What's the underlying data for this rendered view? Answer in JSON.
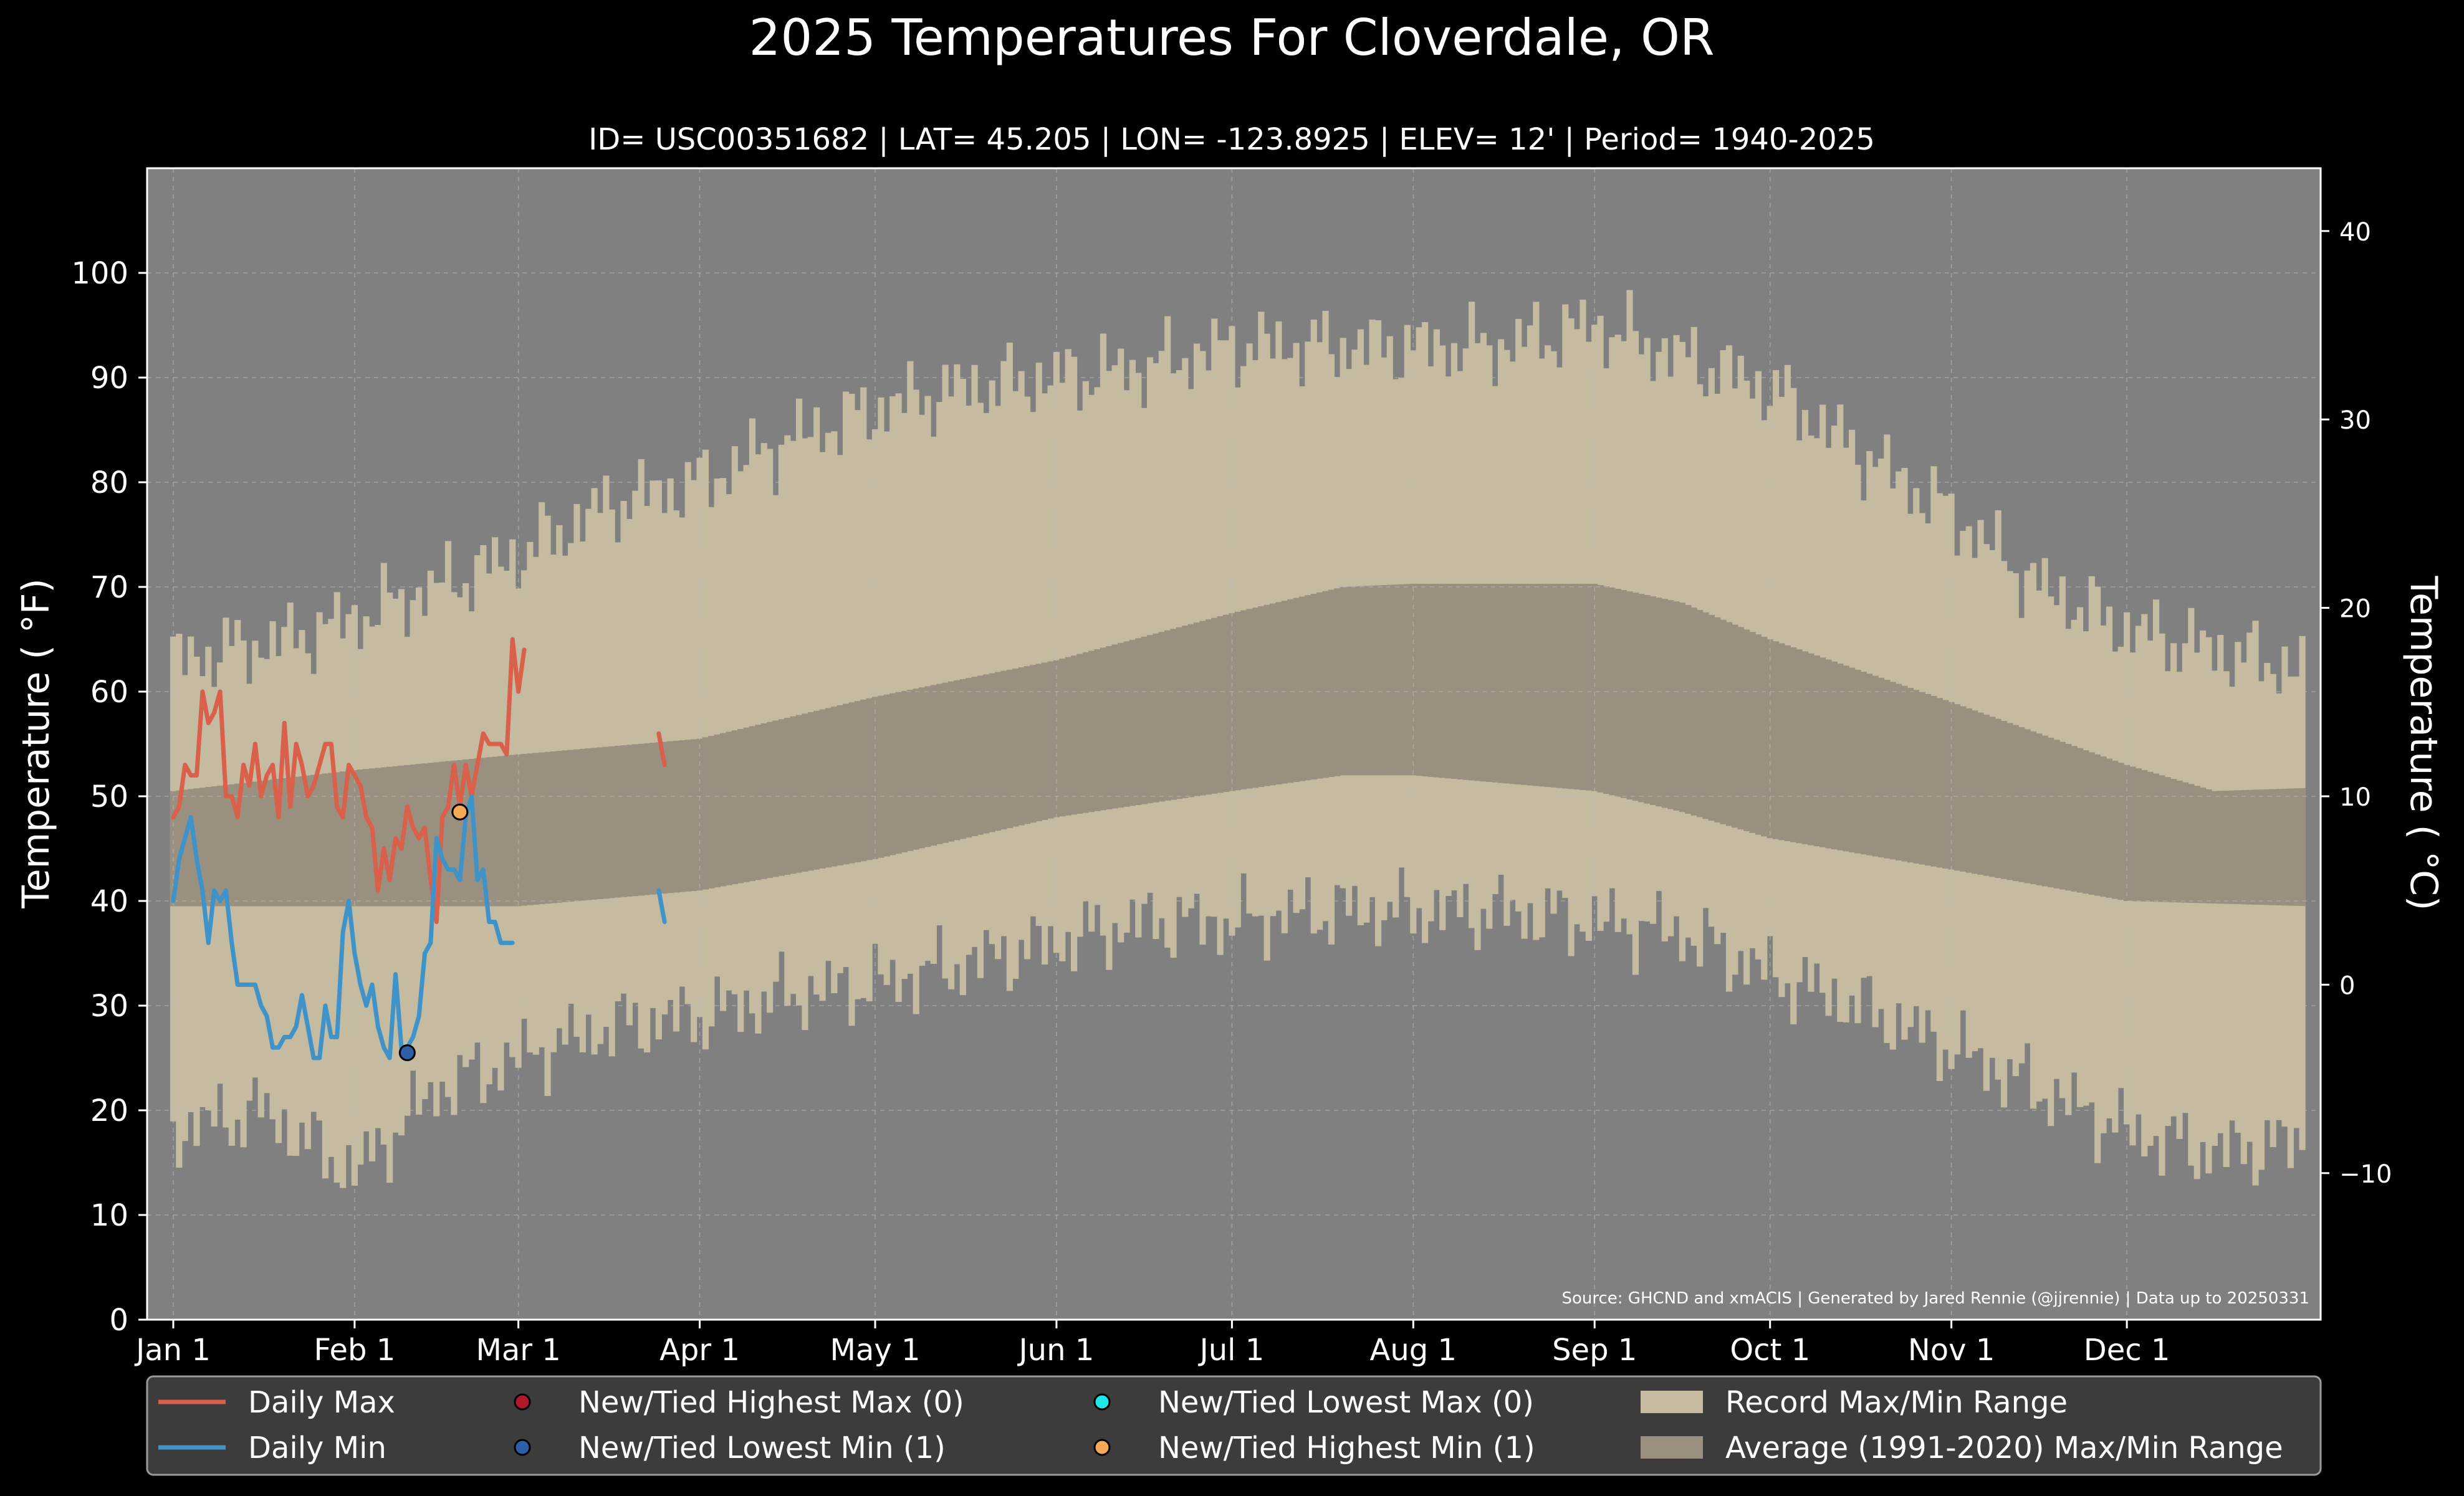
{
  "chart_data": {
    "type": "line",
    "title": "2025 Temperatures For Cloverdale, OR",
    "subtitle": "ID= USC00351682 | LAT= 45.205 | LON= -123.8925 | ELEV= 12' | Period= 1940-2025",
    "ylabel": "Temperature ( °F)",
    "ylabel_right": "Temperature ( °C)",
    "source": "Source: GHCND and xmACIS | Generated by Jared Rennie (@jjrennie) | Data up to 20250331",
    "ylim": [
      0,
      110
    ],
    "yticks": [
      0,
      10,
      20,
      30,
      40,
      50,
      60,
      70,
      80,
      90,
      100
    ],
    "yticks_c": [
      -10,
      0,
      10,
      20,
      30,
      40
    ],
    "x_range_days": [
      0,
      365
    ],
    "xticks": [
      {
        "label": "Jan 1",
        "day": 0
      },
      {
        "label": "Feb 1",
        "day": 31
      },
      {
        "label": "Mar 1",
        "day": 59
      },
      {
        "label": "Apr 1",
        "day": 90
      },
      {
        "label": "May 1",
        "day": 120
      },
      {
        "label": "Jun 1",
        "day": 151
      },
      {
        "label": "Jul 1",
        "day": 181
      },
      {
        "label": "Aug 1",
        "day": 212
      },
      {
        "label": "Sep 1",
        "day": 243
      },
      {
        "label": "Oct 1",
        "day": 273
      },
      {
        "label": "Nov 1",
        "day": 304
      },
      {
        "label": "Dec 1",
        "day": 334
      }
    ],
    "grid": true,
    "legend_position": "bottom",
    "colors": {
      "background": "#000000",
      "plot_bg": "#808080",
      "record_range": "#c4bba1",
      "avg_range": "#9a9080",
      "daily_max": "#d9604a",
      "daily_min": "#3f93c9",
      "highest_max_marker": "#b0182c",
      "lowest_min_marker": "#2c5fa8",
      "lowest_max_marker": "#1fe6e6",
      "highest_min_marker": "#f5a855",
      "legend_bg": "#3c3c3c"
    },
    "record_max_anchors": [
      [
        0,
        63
      ],
      [
        20,
        65
      ],
      [
        31,
        67
      ],
      [
        45,
        70
      ],
      [
        59,
        73
      ],
      [
        75,
        78
      ],
      [
        90,
        80
      ],
      [
        105,
        84
      ],
      [
        120,
        87
      ],
      [
        135,
        89
      ],
      [
        151,
        90
      ],
      [
        166,
        91
      ],
      [
        181,
        93
      ],
      [
        196,
        93
      ],
      [
        212,
        93
      ],
      [
        227,
        93
      ],
      [
        243,
        95
      ],
      [
        258,
        92
      ],
      [
        273,
        89
      ],
      [
        288,
        83
      ],
      [
        304,
        77
      ],
      [
        319,
        70
      ],
      [
        334,
        66
      ],
      [
        349,
        64
      ],
      [
        365,
        62
      ]
    ],
    "record_min_anchors": [
      [
        0,
        18
      ],
      [
        15,
        20
      ],
      [
        31,
        14
      ],
      [
        45,
        22
      ],
      [
        59,
        25
      ],
      [
        75,
        28
      ],
      [
        90,
        29
      ],
      [
        105,
        31
      ],
      [
        120,
        32
      ],
      [
        135,
        34
      ],
      [
        151,
        36
      ],
      [
        166,
        38
      ],
      [
        181,
        38
      ],
      [
        196,
        39
      ],
      [
        212,
        39
      ],
      [
        227,
        39
      ],
      [
        243,
        38
      ],
      [
        258,
        37
      ],
      [
        273,
        33
      ],
      [
        288,
        30
      ],
      [
        304,
        26
      ],
      [
        319,
        22
      ],
      [
        334,
        18
      ],
      [
        349,
        16
      ],
      [
        365,
        17
      ]
    ],
    "avg_max_anchors": [
      [
        0,
        50.5
      ],
      [
        31,
        52.5
      ],
      [
        59,
        54
      ],
      [
        90,
        55.5
      ],
      [
        120,
        59.5
      ],
      [
        151,
        63
      ],
      [
        181,
        67.5
      ],
      [
        200,
        70
      ],
      [
        212,
        70.3
      ],
      [
        243,
        70.3
      ],
      [
        258,
        68.5
      ],
      [
        273,
        65
      ],
      [
        304,
        59
      ],
      [
        334,
        53
      ],
      [
        349,
        50.5
      ],
      [
        365,
        50.8
      ]
    ],
    "avg_min_anchors": [
      [
        0,
        39.5
      ],
      [
        31,
        39.5
      ],
      [
        59,
        39.5
      ],
      [
        90,
        41
      ],
      [
        120,
        44
      ],
      [
        151,
        48
      ],
      [
        181,
        50.5
      ],
      [
        200,
        52
      ],
      [
        212,
        52
      ],
      [
        243,
        50.5
      ],
      [
        258,
        48.5
      ],
      [
        273,
        46
      ],
      [
        304,
        43
      ],
      [
        334,
        40
      ],
      [
        365,
        39.5
      ]
    ],
    "series": [
      {
        "name": "Daily Max",
        "segments": [
          {
            "start_day": 0,
            "values": [
              48,
              49,
              53,
              52,
              52,
              60,
              57,
              58,
              60,
              50,
              50,
              48,
              53,
              51,
              55,
              50,
              52,
              53,
              48,
              57,
              49,
              55,
              53,
              50,
              51,
              53,
              55,
              55,
              49,
              48,
              53,
              52,
              51,
              48,
              47,
              41,
              45,
              42,
              46,
              45,
              49,
              47,
              46,
              47,
              42,
              38,
              48,
              49,
              53,
              49,
              53,
              50,
              53,
              56,
              55,
              55,
              55,
              54,
              65,
              60,
              64
            ]
          },
          {
            "start_day": 83,
            "values": [
              56,
              53
            ]
          }
        ]
      },
      {
        "name": "Daily Min",
        "segments": [
          {
            "start_day": 0,
            "values": [
              40,
              44,
              46,
              48,
              44,
              41,
              36,
              41,
              40,
              41,
              36,
              32,
              32,
              32,
              32,
              30,
              29,
              26,
              26,
              27,
              27,
              28,
              31,
              28,
              25,
              25,
              30,
              27,
              27,
              37,
              40,
              35,
              32,
              30,
              32,
              28,
              26,
              25,
              33,
              26,
              26,
              27,
              29,
              35,
              36,
              46,
              44,
              43,
              43,
              42,
              48,
              50,
              42,
              43,
              38,
              38,
              36,
              36,
              36
            ]
          },
          {
            "start_day": 83,
            "values": [
              41,
              38
            ]
          }
        ]
      }
    ],
    "markers": [
      {
        "type": "lowest_min",
        "day": 40,
        "value": 25.5
      },
      {
        "type": "highest_min",
        "day": 49,
        "value": 48.5
      }
    ],
    "legend": [
      {
        "kind": "line",
        "color_key": "daily_max",
        "label": "Daily Max"
      },
      {
        "kind": "line",
        "color_key": "daily_min",
        "label": "Daily Min"
      },
      {
        "kind": "dot",
        "color_key": "highest_max_marker",
        "label": "New/Tied Highest Max (0)"
      },
      {
        "kind": "dot",
        "color_key": "lowest_min_marker",
        "label": "New/Tied Lowest Min (1)"
      },
      {
        "kind": "dot",
        "color_key": "lowest_max_marker",
        "label": "New/Tied Lowest Max (0)"
      },
      {
        "kind": "dot",
        "color_key": "highest_min_marker",
        "label": "New/Tied Highest Min (1)"
      },
      {
        "kind": "patch",
        "color_key": "record_range",
        "label": "Record Max/Min Range"
      },
      {
        "kind": "patch",
        "color_key": "avg_range",
        "label": "Average (1991-2020) Max/Min Range"
      }
    ]
  }
}
